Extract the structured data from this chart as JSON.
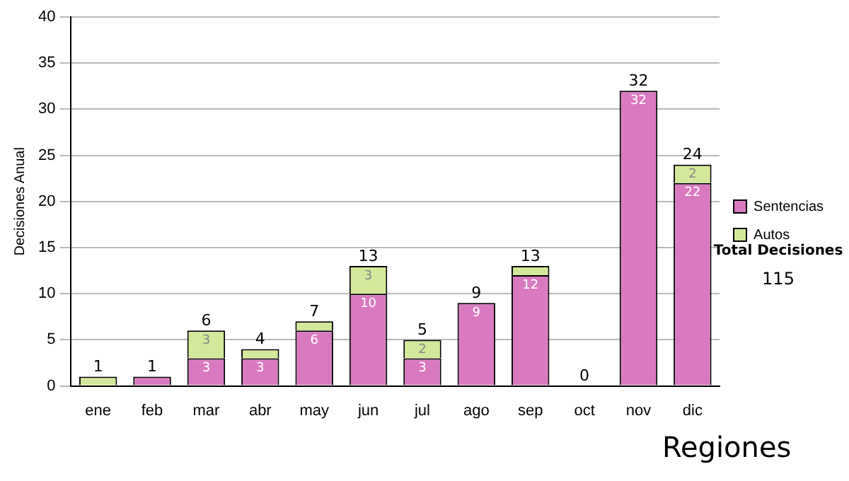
{
  "chart_data": {
    "type": "bar",
    "stacked": true,
    "ylabel": "Decisiones Anual",
    "categories": [
      "ene",
      "feb",
      "mar",
      "abr",
      "may",
      "jun",
      "jul",
      "ago",
      "sep",
      "oct",
      "nov",
      "dic"
    ],
    "series": [
      {
        "name": "Sentencias",
        "color": "#d97ac0",
        "values": [
          0,
          1,
          3,
          3,
          6,
          10,
          3,
          9,
          12,
          0,
          32,
          22
        ],
        "value_labels": [
          null,
          null,
          "3",
          "3",
          "6",
          "10",
          "3",
          "9",
          "12",
          null,
          "32",
          "22"
        ]
      },
      {
        "name": "Autos",
        "color": "#d3e89a",
        "values": [
          1,
          0,
          3,
          1,
          1,
          3,
          2,
          0,
          1,
          0,
          0,
          2
        ],
        "value_labels": [
          null,
          null,
          "3",
          null,
          null,
          "3",
          "2",
          null,
          null,
          null,
          null,
          "2"
        ]
      }
    ],
    "totals": [
      "1",
      "1",
      "6",
      "4",
      "7",
      "13",
      "5",
      "9",
      "13",
      "0",
      "32",
      "24"
    ],
    "ylim": [
      0,
      40
    ],
    "yticks": [
      0,
      5,
      10,
      15,
      20,
      25,
      30,
      35,
      40
    ],
    "grid": "y",
    "legend": "right",
    "annotations": [
      "Total Decisiones",
      "115",
      "Regiones"
    ]
  }
}
